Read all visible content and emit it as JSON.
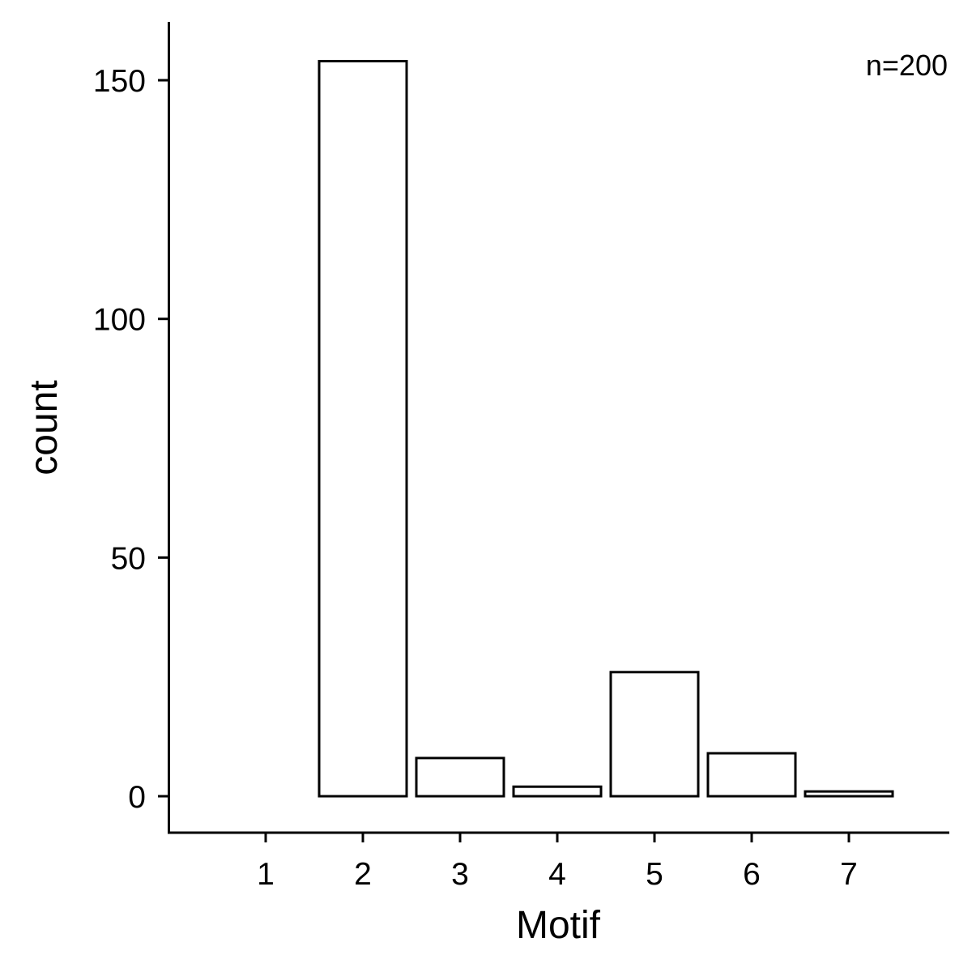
{
  "chart_data": {
    "type": "bar",
    "title": "",
    "xlabel": "Motif",
    "ylabel": "count",
    "categories": [
      "1",
      "2",
      "3",
      "4",
      "5",
      "6",
      "7"
    ],
    "values": [
      0,
      154,
      8,
      2,
      26,
      9,
      1
    ],
    "yticks": [
      0,
      50,
      100,
      150
    ],
    "ylim": [
      -7.6,
      162
    ],
    "annotation": "n=200",
    "annotation_position": "top-right",
    "bar_fill": "#ffffff",
    "bar_outline": "#000000",
    "grid": false,
    "legend": "none"
  }
}
